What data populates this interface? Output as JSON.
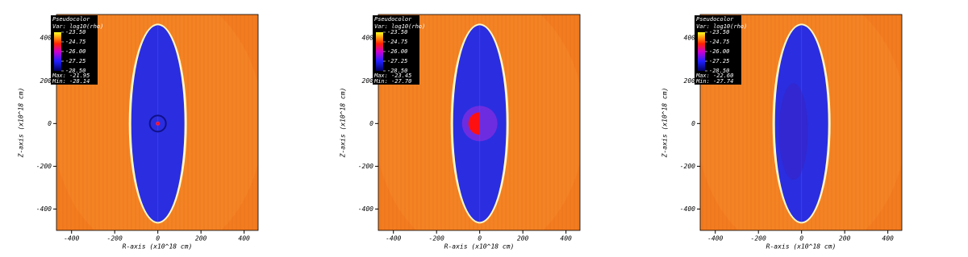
{
  "chart_data": [
    {
      "type": "pseudocolor",
      "legend_title": "Pseudocolor",
      "variable": "Var: log10(rho)",
      "colorbar_ticks": [
        {
          "value": -23.5,
          "label": "-23.50"
        },
        {
          "value": -24.75,
          "label": "-24.75"
        },
        {
          "value": -26,
          "label": "-26.00"
        },
        {
          "value": -27.25,
          "label": "-27.25"
        },
        {
          "value": -28.5,
          "label": "-28.50"
        }
      ],
      "max_text": "Max: -21.95",
      "min_text": "Min: -28.14",
      "xlabel": "R-axis (x10^18 cm)",
      "ylabel": "Z-axis (x10^18 cm)",
      "xlim": [
        -470,
        465
      ],
      "ylim": [
        -500,
        510
      ],
      "xticks": [
        -400,
        -200,
        0,
        200,
        400
      ],
      "yticks": [
        -400,
        -200,
        0,
        200,
        400
      ]
    },
    {
      "type": "pseudocolor",
      "legend_title": "Pseudocolor",
      "variable": "Var: log10(rho)",
      "colorbar_ticks": [
        {
          "value": -23.5,
          "label": "-23.50"
        },
        {
          "value": -24.75,
          "label": "-24.75"
        },
        {
          "value": -26,
          "label": "-26.00"
        },
        {
          "value": -27.25,
          "label": "-27.25"
        },
        {
          "value": -28.5,
          "label": "-28.50"
        }
      ],
      "max_text": "Max: -23.45",
      "min_text": "Min: -27.70",
      "xlabel": "R-axis (x10^18 cm)",
      "ylabel": "Z-axis (x10^18 cm)",
      "xlim": [
        -470,
        465
      ],
      "ylim": [
        -500,
        510
      ],
      "xticks": [
        -400,
        -200,
        0,
        200,
        400
      ],
      "yticks": [
        -400,
        -200,
        0,
        200,
        400
      ]
    },
    {
      "type": "pseudocolor",
      "legend_title": "Pseudocolor",
      "variable": "Var: log10(rho)",
      "colorbar_ticks": [
        {
          "value": -23.5,
          "label": "-23.50"
        },
        {
          "value": -24.75,
          "label": "-24.75"
        },
        {
          "value": -26,
          "label": "-26.00"
        },
        {
          "value": -27.25,
          "label": "-27.25"
        },
        {
          "value": -28.5,
          "label": "-28.50"
        }
      ],
      "max_text": "Max: -22.60",
      "min_text": "Min: -27.74",
      "xlabel": "R-axis (x10^18 cm)",
      "ylabel": "Z-axis (x10^18 cm)",
      "xlim": [
        -470,
        465
      ],
      "ylim": [
        -500,
        510
      ],
      "xticks": [
        -400,
        -200,
        0,
        200,
        400
      ],
      "yticks": [
        -400,
        -200,
        0,
        200,
        400
      ]
    }
  ]
}
